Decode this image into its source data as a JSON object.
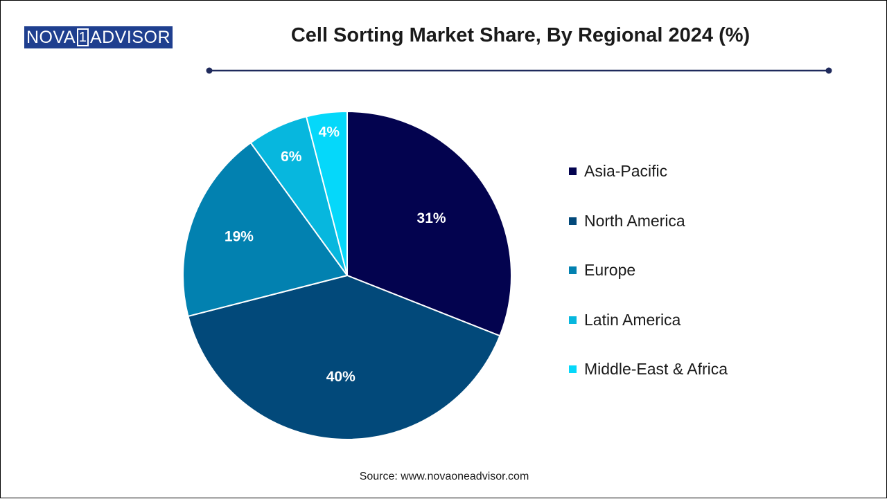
{
  "logo": {
    "left": "NOVA",
    "box": "1",
    "right": "ADVISOR"
  },
  "colors": {
    "logo_bg": "#1f3f8f",
    "rule": "#1f2a5c",
    "slice_border": "#ffffff",
    "label_dark_bg": "#ffffff",
    "label_light_bg": "#1a1a1a"
  },
  "chart_data": {
    "type": "pie",
    "title": "Cell Sorting Market Share, By Regional 2024 (%)",
    "legend_position": "right",
    "slices": [
      {
        "name": "Asia-Pacific",
        "value": 31,
        "label": "31%",
        "color": "#03034f"
      },
      {
        "name": "North America",
        "value": 40,
        "label": "40%",
        "color": "#02497a"
      },
      {
        "name": "Europe",
        "value": 19,
        "label": "19%",
        "color": "#0281b0"
      },
      {
        "name": "Latin America",
        "value": 6,
        "label": "6%",
        "color": "#07b7de"
      },
      {
        "name": "Middle-East & Africa",
        "value": 4,
        "label": "4%",
        "color": "#05d8fa"
      }
    ]
  },
  "source": "Source: www.novaoneadvisor.com"
}
